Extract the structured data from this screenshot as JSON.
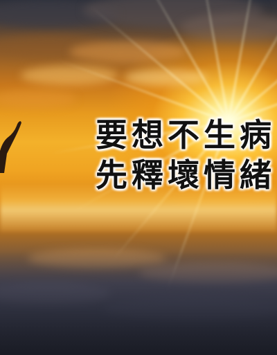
{
  "image": {
    "subject": "sunset-sky-over-sea",
    "colors": {
      "sun_core": "#fffde6",
      "sky_gold": "#f3b12a",
      "sky_orange": "#e08a18",
      "sky_dark": "#2b2f3a",
      "text": "#111111",
      "text_halo": "#ffffff"
    }
  },
  "caption": {
    "line1": "要想不生病",
    "line2": "先釋壞情緒"
  },
  "icons": {
    "figure": "raised-arm-silhouette"
  }
}
